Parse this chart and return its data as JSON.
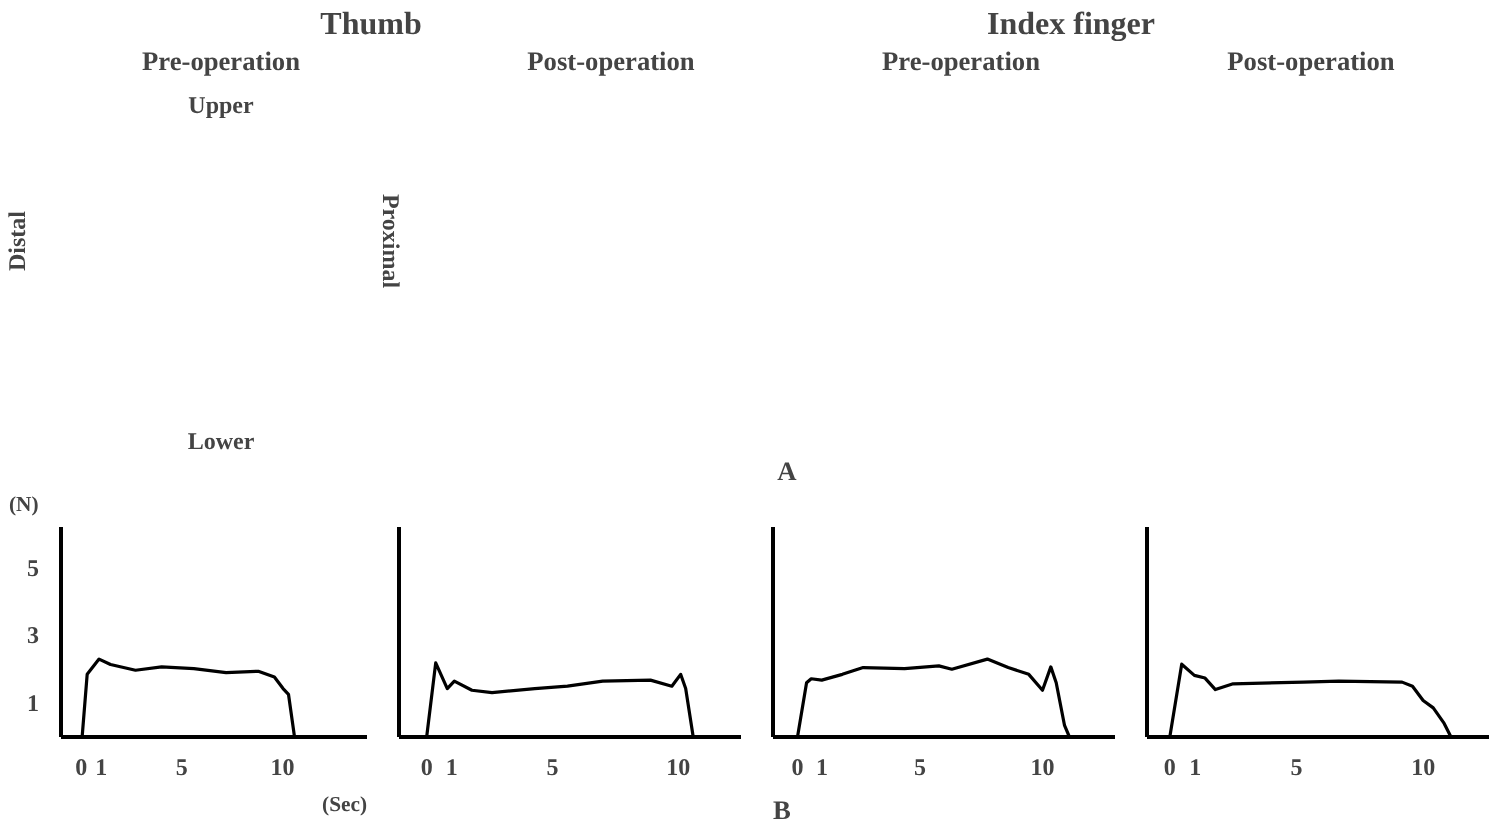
{
  "chart_data": [
    {
      "type": "other",
      "annotations": [
        "Thumb",
        "Index finger",
        "Pre-operation",
        "Post-operation",
        "Pre-operation",
        "Post-operation",
        "Upper",
        "Distal",
        "Proximal",
        "Lower",
        "A"
      ]
    },
    {
      "type": "line",
      "xlabel": "(Sec)",
      "ylabel": "(N)",
      "xlim": [
        -1,
        14.2
      ],
      "ylim": [
        0,
        6.2
      ],
      "xticks": [
        0,
        1,
        5,
        10
      ],
      "yticks": [
        1,
        3,
        5
      ],
      "grid": false,
      "line_style": "solid",
      "series": [
        {
          "color": "#000000",
          "x": [
            0.05,
            0.3,
            0.89,
            1.46,
            2.7,
            4,
            5.6,
            7.2,
            8.8,
            9.6,
            10.03,
            10.3,
            10.6
          ],
          "values": [
            0,
            1.85,
            2.3,
            2.14,
            1.97,
            2.07,
            2.02,
            1.9,
            1.94,
            1.77,
            1.43,
            1.26,
            0
          ]
        }
      ]
    },
    {
      "type": "line",
      "xlim": [
        -1.1,
        12.5
      ],
      "ylim": [
        0,
        6.2
      ],
      "xticks": [
        0,
        1,
        5,
        10
      ],
      "tick_labels": "x",
      "grid": false,
      "line_style": "solid",
      "series": [
        {
          "color": "#000000",
          "x": [
            0,
            0.36,
            0.82,
            1.1,
            1.8,
            2.6,
            4.3,
            5.6,
            7,
            8.9,
            9.75,
            10.1,
            10.3,
            10.6
          ],
          "values": [
            0,
            2.19,
            1.43,
            1.65,
            1.38,
            1.31,
            1.43,
            1.5,
            1.65,
            1.68,
            1.5,
            1.85,
            1.43,
            0
          ]
        }
      ]
    },
    {
      "type": "line",
      "xlim": [
        -1,
        12.96
      ],
      "ylim": [
        0,
        6.2
      ],
      "xticks": [
        0,
        1,
        5,
        10
      ],
      "tick_labels": "x",
      "grid": false,
      "line_style": "solid",
      "annotations": [
        "B"
      ],
      "series": [
        {
          "color": "#000000",
          "x": [
            0,
            0.37,
            0.56,
            0.99,
            1.83,
            2.68,
            4.37,
            5.77,
            6.3,
            7.75,
            8.6,
            9.44,
            10,
            10.34,
            10.56,
            10.9,
            11.1,
            12.1
          ],
          "values": [
            0,
            1.6,
            1.72,
            1.68,
            1.85,
            2.05,
            2.02,
            2.1,
            2.0,
            2.3,
            2.05,
            1.85,
            1.38,
            2.07,
            1.6,
            0.34,
            0,
            0
          ]
        }
      ]
    },
    {
      "type": "line",
      "xlim": [
        -0.9,
        12.6
      ],
      "ylim": [
        0,
        6.2
      ],
      "xticks": [
        0,
        1,
        5,
        10
      ],
      "tick_labels": "x",
      "grid": false,
      "line_style": "solid",
      "series": [
        {
          "color": "#000000",
          "x": [
            0,
            0.47,
            0.97,
            1.39,
            1.8,
            2.5,
            5.28,
            6.67,
            9.17,
            9.58,
            10,
            10.4,
            10.83,
            11.1
          ],
          "values": [
            0,
            2.15,
            1.82,
            1.74,
            1.4,
            1.57,
            1.62,
            1.65,
            1.62,
            1.5,
            1.08,
            0.86,
            0.4,
            0
          ]
        }
      ]
    }
  ]
}
